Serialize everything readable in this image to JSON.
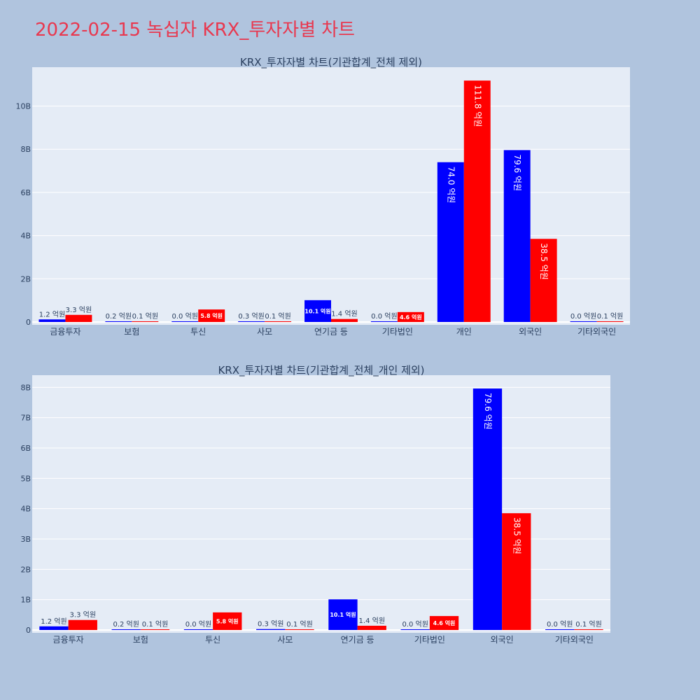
{
  "page_title": "2022-02-15 녹십자 KRX_투자자별 차트",
  "colors": {
    "buy": "#0000ff",
    "sell": "#ff0000",
    "plot_bg": "#e5ecf6",
    "page_bg": "#b0c4de",
    "title": "#e8384f",
    "text": "#2a3f5f"
  },
  "chart_data": [
    {
      "type": "bar",
      "title": "KRX_투자자별 차트(기관합계_전체 제외)",
      "categories": [
        "금융투자",
        "보험",
        "투신",
        "사모",
        "연기금 등",
        "기타법인",
        "개인",
        "외국인",
        "기타외국인"
      ],
      "ylim": [
        0,
        11.8
      ],
      "yticks": [
        0,
        2,
        4,
        6,
        8,
        10
      ],
      "ytick_labels": [
        "0",
        "2B",
        "4B",
        "6B",
        "8B",
        "10B"
      ],
      "series": [
        {
          "color": "blue",
          "values": [
            0.12,
            0.02,
            0.0,
            0.03,
            1.01,
            0.0,
            7.4,
            7.96,
            0.0
          ],
          "labels": [
            "1.2 억원",
            "0.2 억원",
            "0.0 억원",
            "0.3 억원",
            "10.1 억원",
            "0.0 억원",
            "74.0 억원",
            "79.6 억원",
            "0.0 억원"
          ]
        },
        {
          "color": "red",
          "values": [
            0.33,
            0.01,
            0.58,
            0.01,
            0.14,
            0.46,
            11.18,
            3.85,
            0.01
          ],
          "labels": [
            "3.3 억원",
            "0.1 억원",
            "5.8 억원",
            "0.1 억원",
            "1.4 억원",
            "4.6 억원",
            "111.8 억원",
            "38.5 억원",
            "0.1 억원"
          ]
        }
      ]
    },
    {
      "type": "bar",
      "title": "KRX_투자자별 차트(기관합계_전체_개인 제외)",
      "categories": [
        "금융투자",
        "보험",
        "투신",
        "사모",
        "연기금 등",
        "기타법인",
        "외국인",
        "기타외국인"
      ],
      "ylim": [
        0,
        8.4
      ],
      "yticks": [
        0,
        1,
        2,
        3,
        4,
        5,
        6,
        7,
        8
      ],
      "ytick_labels": [
        "0",
        "1B",
        "2B",
        "3B",
        "4B",
        "5B",
        "6B",
        "7B",
        "8B"
      ],
      "series": [
        {
          "color": "blue",
          "values": [
            0.12,
            0.02,
            0.0,
            0.03,
            1.01,
            0.0,
            7.96,
            0.0
          ],
          "labels": [
            "1.2 억원",
            "0.2 억원",
            "0.0 억원",
            "0.3 억원",
            "10.1 억원",
            "0.0 억원",
            "79.6 억원",
            "0.0 억원"
          ]
        },
        {
          "color": "red",
          "values": [
            0.33,
            0.01,
            0.58,
            0.01,
            0.14,
            0.46,
            3.85,
            0.01
          ],
          "labels": [
            "3.3 억원",
            "0.1 억원",
            "5.8 억원",
            "0.1 억원",
            "1.4 억원",
            "4.6 억원",
            "38.5 억원",
            "0.1 억원"
          ]
        }
      ]
    }
  ]
}
